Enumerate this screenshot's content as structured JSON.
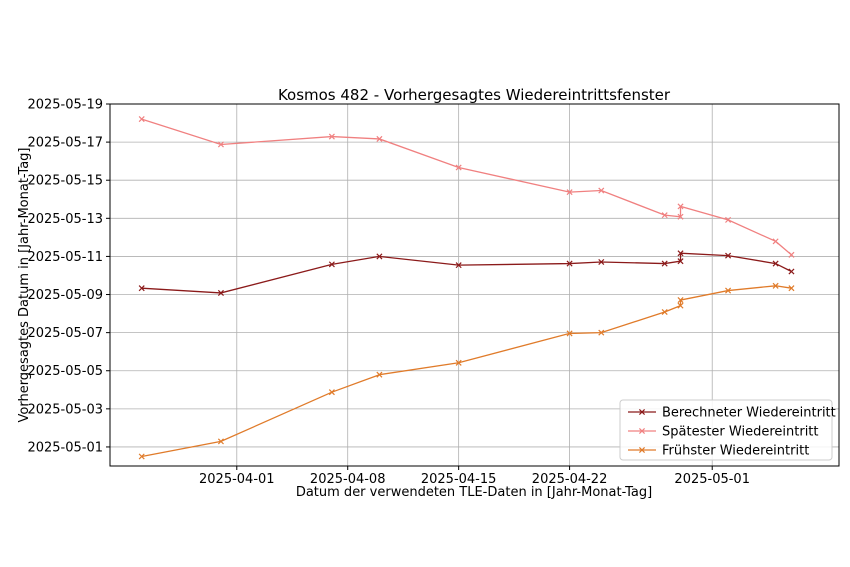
{
  "chart_data": {
    "type": "line",
    "title": "Kosmos 482 - Vorhergesagtes Wiedereintrittsfenster",
    "xlabel": "Datum der verwendeten TLE-Daten in [Jahr-Monat-Tag]",
    "ylabel": "Vorhergesagtes Datum in [Jahr-Monat-Tag]",
    "xlim": [
      "2025-03-24",
      "2025-05-09"
    ],
    "ylim": [
      "2025-04-30",
      "2025-05-19"
    ],
    "x_ticks": [
      "2025-04-01",
      "2025-04-08",
      "2025-04-15",
      "2025-04-22",
      "2025-05-01"
    ],
    "y_ticks": [
      "2025-05-01",
      "2025-05-03",
      "2025-05-05",
      "2025-05-07",
      "2025-05-09",
      "2025-05-11",
      "2025-05-13",
      "2025-05-15",
      "2025-05-17",
      "2025-05-19"
    ],
    "grid": true,
    "legend_position": "lower-right",
    "x": [
      "2025-03-26",
      "2025-03-31",
      "2025-04-07",
      "2025-04-10",
      "2025-04-15",
      "2025-04-22",
      "2025-04-24",
      "2025-04-28",
      "2025-04-29",
      "2025-04-29",
      "2025-05-02",
      "2025-05-05",
      "2025-05-06"
    ],
    "series": [
      {
        "name": "Berechneter Wiedereintritt",
        "color": "#8b1a1a",
        "values": [
          "2025-05-09 08:00",
          "2025-05-09 02:00",
          "2025-05-10 14:00",
          "2025-05-11 00:00",
          "2025-05-10 13:00",
          "2025-05-10 15:00",
          "2025-05-10 17:00",
          "2025-05-10 15:00",
          "2025-05-10 18:00",
          "2025-05-11 04:00",
          "2025-05-11 01:00",
          "2025-05-10 15:00",
          "2025-05-10 05:00"
        ]
      },
      {
        "name": "Spätester Wiedereintritt",
        "color": "#f08080",
        "values": [
          "2025-05-18 05:00",
          "2025-05-16 21:00",
          "2025-05-17 07:00",
          "2025-05-17 04:00",
          "2025-05-15 16:00",
          "2025-05-14 09:00",
          "2025-05-14 11:00",
          "2025-05-13 04:00",
          "2025-05-13 02:00",
          "2025-05-13 15:00",
          "2025-05-12 22:00",
          "2025-05-11 19:00",
          "2025-05-11 02:00"
        ]
      },
      {
        "name": "Frühster Wiedereintritt",
        "color": "#e07b2a",
        "values": [
          "2025-04-30 12:00",
          "2025-05-01 07:00",
          "2025-05-03 21:00",
          "2025-05-04 19:00",
          "2025-05-05 10:00",
          "2025-05-06 23:00",
          "2025-05-07 00:00",
          "2025-05-08 02:00",
          "2025-05-08 10:00",
          "2025-05-08 17:00",
          "2025-05-09 05:00",
          "2025-05-09 11:00",
          "2025-05-09 08:00"
        ]
      }
    ]
  }
}
